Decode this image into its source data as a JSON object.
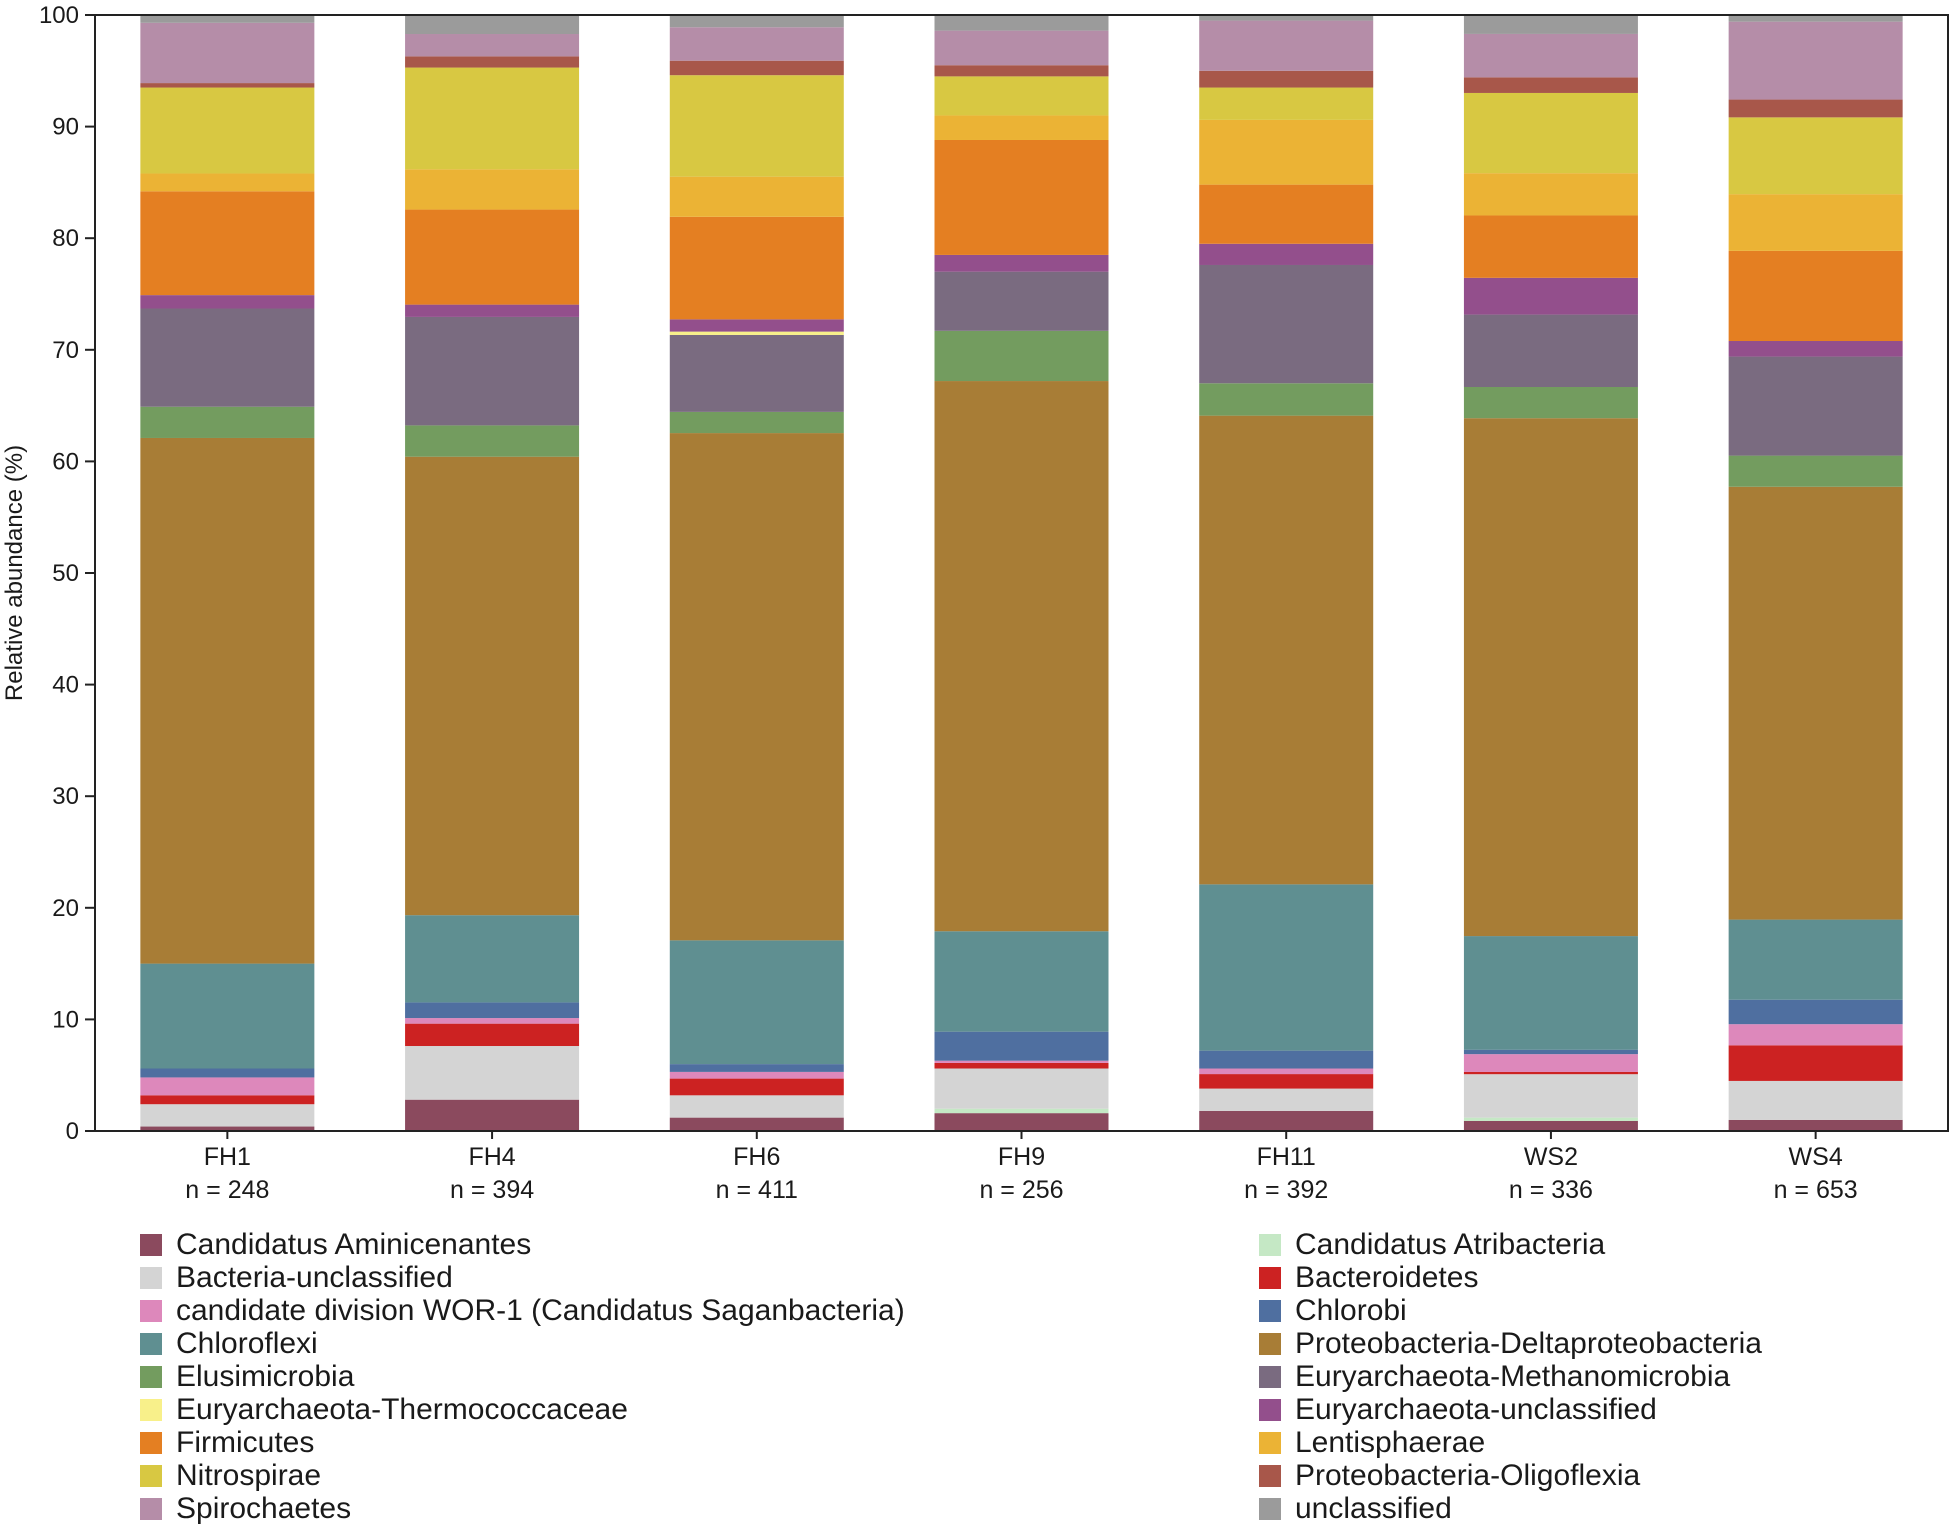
{
  "chart_data": {
    "type": "stacked-bar",
    "ylabel": "Relative abundance (%)",
    "xlabel": "",
    "ylim": [
      0,
      100
    ],
    "yticks": [
      "0",
      "10",
      "20",
      "30",
      "40",
      "50",
      "60",
      "70",
      "80",
      "90",
      "100"
    ],
    "categories": [
      {
        "name": "FH1",
        "n": "n = 248"
      },
      {
        "name": "FH4",
        "n": "n = 394"
      },
      {
        "name": "FH6",
        "n": "n = 411"
      },
      {
        "name": "FH9",
        "n": "n = 256"
      },
      {
        "name": "FH11",
        "n": "n = 392"
      },
      {
        "name": "WS2",
        "n": "n = 336"
      },
      {
        "name": "WS4",
        "n": "n = 653"
      }
    ],
    "series": [
      {
        "name": "Candidatus Aminicenantes",
        "color": "#8b4a5e",
        "values": [
          0.4,
          2.8,
          1.2,
          1.6,
          1.8,
          0.9,
          1.0
        ]
      },
      {
        "name": "Candidatus Atribacteria",
        "color": "#c5e8c5",
        "values": [
          0.0,
          0.0,
          0.0,
          0.4,
          0.0,
          0.3,
          0.0
        ]
      },
      {
        "name": "Bacteria-unclassified",
        "color": "#d4d4d4",
        "values": [
          2.0,
          4.8,
          2.0,
          3.6,
          2.0,
          3.9,
          3.5
        ]
      },
      {
        "name": "Bacteroidetes",
        "color": "#cc2222",
        "values": [
          0.8,
          2.0,
          1.5,
          0.5,
          1.3,
          0.2,
          3.2
        ]
      },
      {
        "name": "candidate division WOR-1 (Candidatus Saganbacteria)",
        "color": "#dd88bb",
        "values": [
          1.6,
          0.5,
          0.6,
          0.2,
          0.5,
          1.6,
          1.9
        ]
      },
      {
        "name": "Chlorobi",
        "color": "#4f6fa0",
        "values": [
          0.8,
          1.4,
          0.7,
          2.6,
          1.6,
          0.4,
          2.2
        ]
      },
      {
        "name": "Chloroflexi",
        "color": "#5f8f91",
        "values": [
          9.4,
          7.8,
          11.1,
          9.0,
          14.9,
          10.2,
          7.2
        ]
      },
      {
        "name": "Proteobacteria-Deltaproteobacteria",
        "color": "#a87d36",
        "values": [
          47.1,
          41.0,
          45.5,
          49.3,
          42.0,
          46.5,
          38.9
        ]
      },
      {
        "name": "Elusimicrobia",
        "color": "#739c5f",
        "values": [
          2.8,
          2.8,
          1.9,
          4.5,
          2.9,
          2.8,
          2.8
        ]
      },
      {
        "name": "Euryarchaeota-Methanomicrobia",
        "color": "#7a6b80",
        "values": [
          8.8,
          9.7,
          6.9,
          5.3,
          10.6,
          6.5,
          8.9
        ]
      },
      {
        "name": "Euryarchaeota-Thermococcaceae",
        "color": "#f8f08a",
        "values": [
          0.0,
          0.0,
          0.3,
          0.0,
          0.0,
          0.0,
          0.0
        ]
      },
      {
        "name": "Euryarchaeota-unclassified",
        "color": "#934f8c",
        "values": [
          1.2,
          1.1,
          1.1,
          1.5,
          1.9,
          3.3,
          1.4
        ]
      },
      {
        "name": "Firmicutes",
        "color": "#e47f22",
        "values": [
          9.3,
          8.5,
          9.2,
          10.3,
          5.3,
          5.6,
          8.1
        ]
      },
      {
        "name": "Lentisphaerae",
        "color": "#ebb335",
        "values": [
          1.6,
          3.6,
          3.6,
          2.2,
          5.8,
          3.8,
          5.1
        ]
      },
      {
        "name": "Nitrospirae",
        "color": "#d8c842",
        "values": [
          7.7,
          9.1,
          9.1,
          3.5,
          2.9,
          7.2,
          6.9
        ]
      },
      {
        "name": "Proteobacteria-Oligoflexia",
        "color": "#a8574a",
        "values": [
          0.4,
          1.0,
          1.3,
          1.0,
          1.5,
          1.4,
          1.6
        ]
      },
      {
        "name": "Spirochaetes",
        "color": "#b58da8",
        "values": [
          5.4,
          2.0,
          3.0,
          3.1,
          4.5,
          3.9,
          7.0
        ]
      },
      {
        "name": "unclassified",
        "color": "#9b9b9b",
        "values": [
          0.7,
          1.7,
          1.1,
          1.4,
          0.5,
          1.7,
          0.6
        ]
      }
    ]
  },
  "legend": {
    "left": [
      {
        "label": "Candidatus Aminicenantes",
        "color": "#8b4a5e"
      },
      {
        "label": "Bacteria-unclassified",
        "color": "#d4d4d4"
      },
      {
        "label": "candidate division WOR-1 (Candidatus Saganbacteria)",
        "color": "#dd88bb"
      },
      {
        "label": "Chloroflexi",
        "color": "#5f8f91"
      },
      {
        "label": "Elusimicrobia",
        "color": "#739c5f"
      },
      {
        "label": "Euryarchaeota-Thermococcaceae",
        "color": "#f8f08a"
      },
      {
        "label": "Firmicutes",
        "color": "#e47f22"
      },
      {
        "label": "Nitrospirae",
        "color": "#d8c842"
      },
      {
        "label": "Spirochaetes",
        "color": "#b58da8"
      }
    ],
    "right": [
      {
        "label": "Candidatus Atribacteria",
        "color": "#c5e8c5"
      },
      {
        "label": "Bacteroidetes",
        "color": "#cc2222"
      },
      {
        "label": "Chlorobi",
        "color": "#4f6fa0"
      },
      {
        "label": "Proteobacteria-Deltaproteobacteria",
        "color": "#a87d36"
      },
      {
        "label": "Euryarchaeota-Methanomicrobia",
        "color": "#7a6b80"
      },
      {
        "label": "Euryarchaeota-unclassified",
        "color": "#934f8c"
      },
      {
        "label": "Lentisphaerae",
        "color": "#ebb335"
      },
      {
        "label": "Proteobacteria-Oligoflexia",
        "color": "#a8574a"
      },
      {
        "label": "unclassified",
        "color": "#9b9b9b"
      }
    ]
  }
}
